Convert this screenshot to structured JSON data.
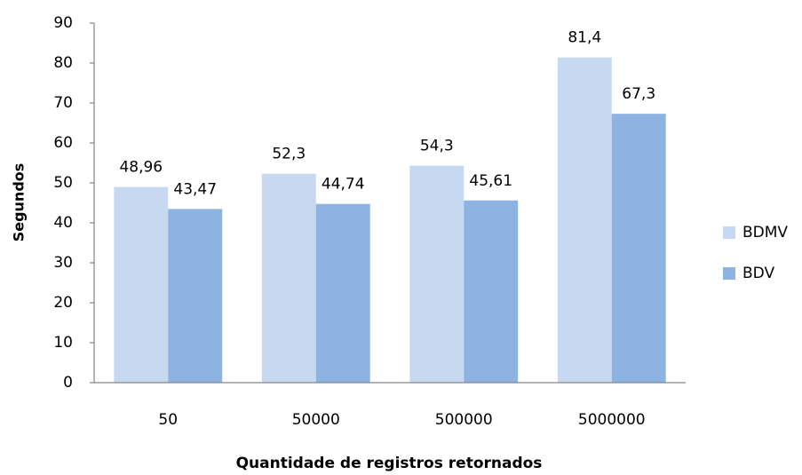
{
  "chart_data": {
    "type": "bar",
    "categories": [
      "50",
      "50000",
      "500000",
      "5000000"
    ],
    "series": [
      {
        "name": "BDMV",
        "color": "#c6d9f1",
        "values": [
          48.96,
          52.3,
          54.3,
          81.4
        ],
        "value_labels": [
          "48,96",
          "52,3",
          "54,3",
          "81,4"
        ]
      },
      {
        "name": "BDV",
        "color": "#8db3e2",
        "values": [
          43.47,
          44.74,
          45.61,
          67.3
        ],
        "value_labels": [
          "43,47",
          "44,74",
          "45,61",
          "67,3"
        ]
      }
    ],
    "ylim": [
      0,
      90
    ],
    "yticks": [
      0,
      10,
      20,
      30,
      40,
      50,
      60,
      70,
      80,
      90
    ],
    "y_label": "Segundos",
    "x_label": "Quantidade de registros retornados",
    "grid": false,
    "legend": "right"
  }
}
